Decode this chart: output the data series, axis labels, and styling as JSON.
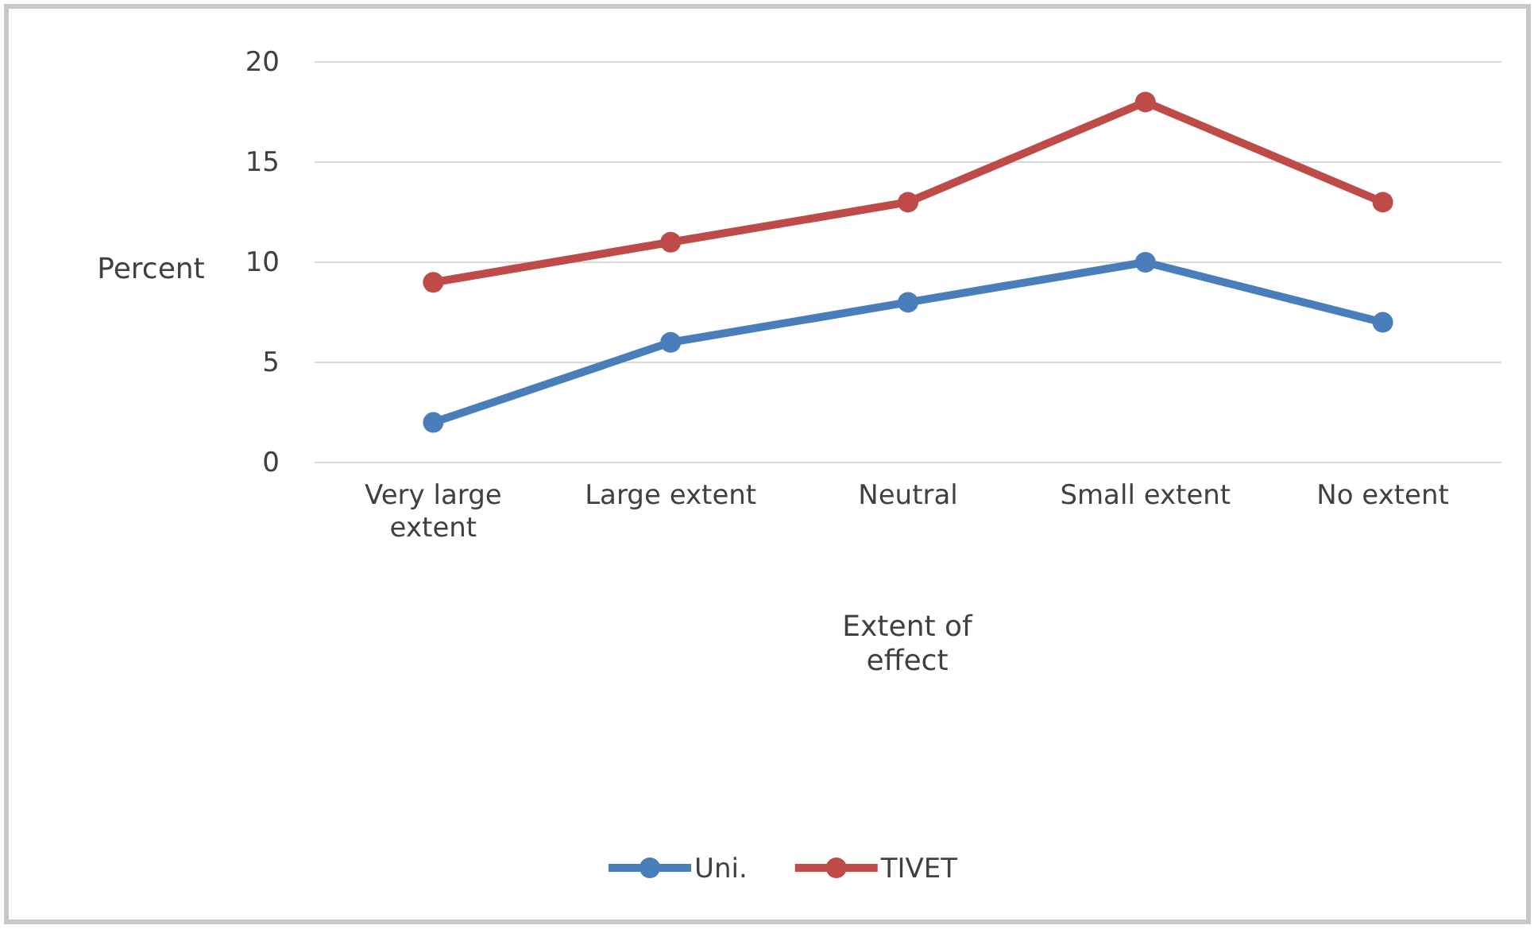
{
  "chart_data": {
    "type": "line",
    "categories": [
      "Very large extent",
      "Large extent",
      "Neutral",
      "Small extent",
      "No extent"
    ],
    "series": [
      {
        "name": "Uni.",
        "color": "#4a7ebb",
        "values": [
          2,
          6,
          8,
          10,
          7
        ]
      },
      {
        "name": "TIVET",
        "color": "#be4b48",
        "values": [
          9,
          11,
          13,
          18,
          13
        ]
      }
    ],
    "ylabel": "Percent",
    "xlabel": "Extent of effect",
    "ylim": [
      0,
      20
    ],
    "yticks": [
      0,
      5,
      10,
      15,
      20
    ],
    "grid": "y",
    "legend": "bottom",
    "marker": "circle",
    "line_style": "solid"
  }
}
